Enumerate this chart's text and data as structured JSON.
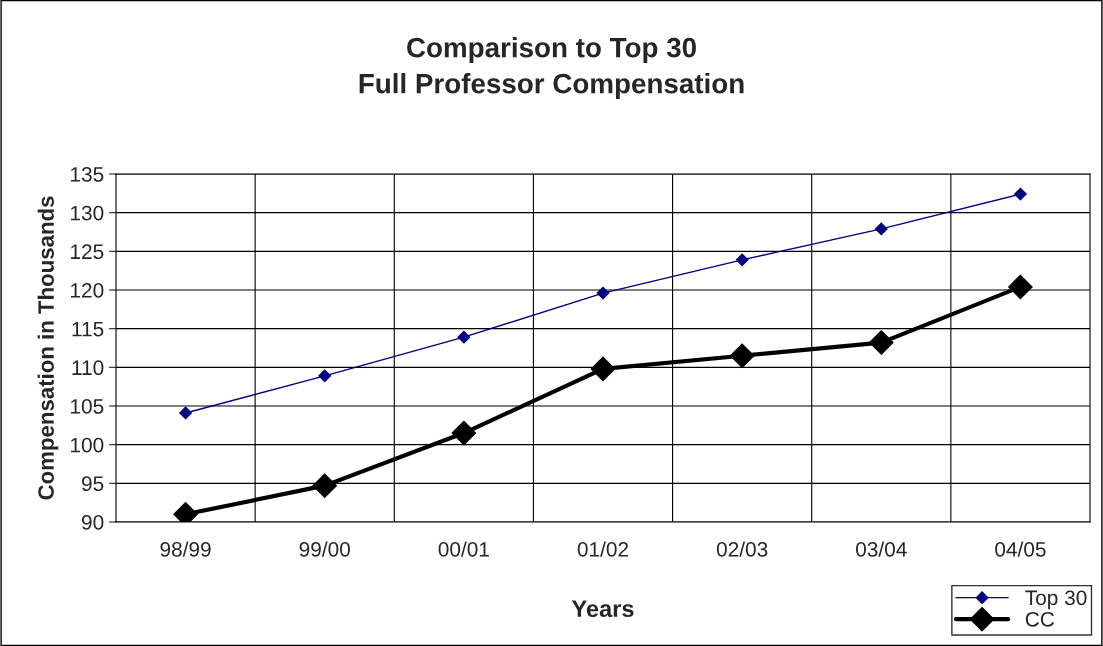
{
  "chart_data": {
    "type": "line",
    "title": "Comparison to Top 30\nFull Professor Compensation",
    "xlabel": "Years",
    "ylabel": "Compensation in Thousands",
    "categories": [
      "98/99",
      "99/00",
      "00/01",
      "01/02",
      "02/03",
      "03/04",
      "04/05"
    ],
    "series": [
      {
        "name": "Top 30",
        "color": "#000080",
        "values": [
          104.1,
          108.9,
          113.9,
          119.6,
          123.9,
          127.9,
          132.4
        ]
      },
      {
        "name": "CC",
        "color": "#000000",
        "values": [
          91.0,
          94.7,
          101.5,
          109.8,
          111.5,
          113.2,
          120.4
        ]
      }
    ],
    "ylim": [
      90,
      135
    ],
    "yticks": [
      90,
      95,
      100,
      105,
      110,
      115,
      120,
      125,
      130,
      135
    ],
    "grid": true,
    "legend": "bottom right",
    "marker": "diamond",
    "line_style": "solid"
  }
}
